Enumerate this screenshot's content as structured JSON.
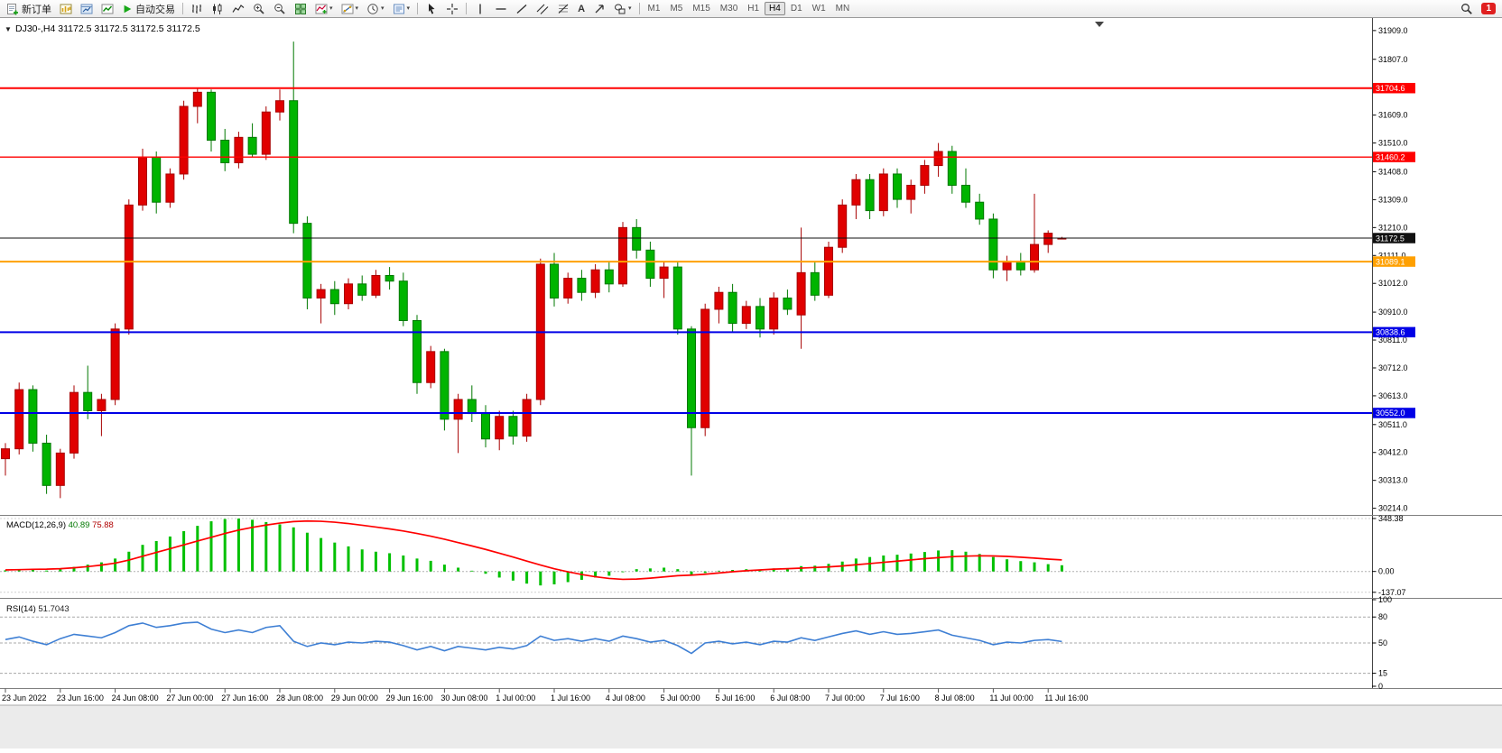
{
  "window": {
    "badge_count": "1"
  },
  "icons": {
    "caret": "▾"
  },
  "toolbar": {
    "new_order_label": "新订单",
    "auto_trading_label": "自动交易",
    "text_tool_label": "A",
    "timeframes": [
      {
        "label": "M1",
        "active": false
      },
      {
        "label": "M5",
        "active": false
      },
      {
        "label": "M15",
        "active": false
      },
      {
        "label": "M30",
        "active": false
      },
      {
        "label": "H1",
        "active": false
      },
      {
        "label": "H4",
        "active": true
      },
      {
        "label": "D1",
        "active": false
      },
      {
        "label": "W1",
        "active": false
      },
      {
        "label": "MN",
        "active": false
      }
    ]
  },
  "chart": {
    "title_marker": "▼",
    "title": "DJ30-,H4 31172.5 31172.5 31172.5 31172.5"
  },
  "chart_data": [
    {
      "type": "candlestick",
      "symbol": "DJ30-",
      "timeframe": "H4",
      "ohlc_current": [
        31172.5,
        31172.5,
        31172.5,
        31172.5
      ],
      "bull_color": "#E00000",
      "bull_stroke": "#A80000",
      "bear_color": "#00B400",
      "bear_stroke": "#007800",
      "ylim": [
        30200,
        31915
      ],
      "y_ticks": [
        31909.0,
        31807.0,
        31609.0,
        31510.0,
        31408.0,
        31309.0,
        31210.0,
        31111.0,
        31012.0,
        30910.0,
        30811.0,
        30712.0,
        30613.0,
        30511.0,
        30412.0,
        30313.0,
        30214.0
      ],
      "hlines": [
        {
          "price": 31704.6,
          "label": "31704.6",
          "color": "#FF0000",
          "width": 2,
          "current": false
        },
        {
          "price": 31460.2,
          "label": "31460.2",
          "color": "#FF0000",
          "width": 1.4,
          "current": false
        },
        {
          "price": 31172.5,
          "label": "31172.5",
          "color": "#101010",
          "width": 1,
          "current": true
        },
        {
          "price": 31089.1,
          "label": "31089.1",
          "color": "#FFA000",
          "width": 2,
          "current": false
        },
        {
          "price": 30838.6,
          "label": "30838.6",
          "color": "#0000E6",
          "width": 2,
          "current": false
        },
        {
          "price": 30552.0,
          "label": "30552.0",
          "color": "#0000E6",
          "width": 2,
          "current": false
        }
      ],
      "x_label_every": 4,
      "x_labels": [
        "23 Jun 2022",
        "23 Jun 16:00",
        "24 Jun 08:00",
        "27 Jun 00:00",
        "27 Jun 16:00",
        "28 Jun 08:00",
        "29 Jun 00:00",
        "29 Jun 16:00",
        "30 Jun 08:00",
        "1 Jul 00:00",
        "1 Jul 16:00",
        "4 Jul 08:00",
        "5 Jul 00:00",
        "5 Jul 16:00",
        "6 Jul 08:00",
        "7 Jul 00:00",
        "7 Jul 16:00",
        "8 Jul 08:00",
        "11 Jul 00:00",
        "11 Jul 16:00"
      ],
      "candles": [
        [
          30390,
          30445,
          30330,
          30425
        ],
        [
          30425,
          30660,
          30405,
          30635
        ],
        [
          30635,
          30650,
          30415,
          30445
        ],
        [
          30445,
          30475,
          30265,
          30295
        ],
        [
          30295,
          30425,
          30250,
          30410
        ],
        [
          30410,
          30650,
          30390,
          30625
        ],
        [
          30625,
          30720,
          30530,
          30560
        ],
        [
          30560,
          30620,
          30470,
          30600
        ],
        [
          30600,
          30870,
          30580,
          30850
        ],
        [
          30850,
          31310,
          30830,
          31290
        ],
        [
          31290,
          31490,
          31270,
          31460
        ],
        [
          31460,
          31480,
          31260,
          31300
        ],
        [
          31300,
          31420,
          31280,
          31400
        ],
        [
          31400,
          31660,
          31380,
          31640
        ],
        [
          31640,
          31705,
          31580,
          31690
        ],
        [
          31690,
          31700,
          31480,
          31520
        ],
        [
          31520,
          31560,
          31410,
          31440
        ],
        [
          31440,
          31550,
          31420,
          31530
        ],
        [
          31530,
          31580,
          31460,
          31470
        ],
        [
          31470,
          31640,
          31450,
          31620
        ],
        [
          31620,
          31700,
          31590,
          31660
        ],
        [
          31660,
          31870,
          31190,
          31225
        ],
        [
          31225,
          31250,
          30920,
          30960
        ],
        [
          30960,
          31010,
          30870,
          30990
        ],
        [
          30990,
          31020,
          30900,
          30940
        ],
        [
          30940,
          31030,
          30920,
          31010
        ],
        [
          31010,
          31040,
          30950,
          30970
        ],
        [
          30970,
          31060,
          30960,
          31040
        ],
        [
          31040,
          31070,
          30990,
          31020
        ],
        [
          31020,
          31050,
          30860,
          30880
        ],
        [
          30880,
          30900,
          30620,
          30660
        ],
        [
          30660,
          30790,
          30640,
          30770
        ],
        [
          30770,
          30780,
          30490,
          30530
        ],
        [
          30530,
          30620,
          30410,
          30600
        ],
        [
          30600,
          30650,
          30520,
          30550
        ],
        [
          30550,
          30580,
          30430,
          30460
        ],
        [
          30460,
          30560,
          30420,
          30540
        ],
        [
          30540,
          30560,
          30440,
          30470
        ],
        [
          30470,
          30620,
          30450,
          30600
        ],
        [
          30600,
          31100,
          30580,
          31080
        ],
        [
          31080,
          31120,
          30930,
          30960
        ],
        [
          30960,
          31050,
          30940,
          31030
        ],
        [
          31030,
          31060,
          30950,
          30980
        ],
        [
          30980,
          31080,
          30960,
          31060
        ],
        [
          31060,
          31090,
          30980,
          31010
        ],
        [
          31010,
          31230,
          31000,
          31210
        ],
        [
          31210,
          31240,
          31100,
          31130
        ],
        [
          31130,
          31160,
          31000,
          31030
        ],
        [
          31030,
          31090,
          30960,
          31070
        ],
        [
          31070,
          31090,
          30830,
          30850
        ],
        [
          30850,
          30860,
          30330,
          30500
        ],
        [
          30500,
          30940,
          30470,
          30920
        ],
        [
          30920,
          31000,
          30870,
          30980
        ],
        [
          30980,
          31010,
          30840,
          30870
        ],
        [
          30870,
          30950,
          30850,
          30930
        ],
        [
          30930,
          30960,
          30820,
          30850
        ],
        [
          30850,
          30980,
          30830,
          30960
        ],
        [
          30960,
          30990,
          30900,
          30920
        ],
        [
          30900,
          31210,
          30780,
          31050
        ],
        [
          31050,
          31090,
          30950,
          30970
        ],
        [
          30970,
          31160,
          30960,
          31140
        ],
        [
          31140,
          31310,
          31120,
          31290
        ],
        [
          31290,
          31400,
          31240,
          31380
        ],
        [
          31380,
          31400,
          31240,
          31270
        ],
        [
          31270,
          31420,
          31250,
          31400
        ],
        [
          31400,
          31420,
          31280,
          31310
        ],
        [
          31310,
          31380,
          31260,
          31360
        ],
        [
          31360,
          31450,
          31330,
          31430
        ],
        [
          31430,
          31510,
          31390,
          31480
        ],
        [
          31480,
          31500,
          31330,
          31360
        ],
        [
          31360,
          31420,
          31280,
          31300
        ],
        [
          31300,
          31330,
          31220,
          31240
        ],
        [
          31240,
          31260,
          31030,
          31060
        ],
        [
          31060,
          31110,
          31020,
          31090
        ],
        [
          31090,
          31120,
          31040,
          31060
        ],
        [
          31060,
          31330,
          31050,
          31150
        ],
        [
          31150,
          31200,
          31120,
          31190
        ],
        [
          31172.5,
          31177,
          31168,
          31172.5
        ]
      ]
    },
    {
      "type": "macd",
      "title": "MACD(12,26,9)",
      "current_macd": "40.89",
      "current_signal": "75.88",
      "hist_color": "#00C000",
      "signal_color": "#FF0000",
      "ylim": [
        -162,
        360
      ],
      "y_ticks": [
        {
          "v": 348.38,
          "t": "348.38"
        },
        {
          "v": 0,
          "t": "0.00"
        },
        {
          "v": -137.07,
          "t": "-137.07"
        }
      ],
      "hist": [
        8,
        12,
        10,
        6,
        14,
        30,
        45,
        60,
        85,
        130,
        175,
        200,
        230,
        265,
        300,
        330,
        345,
        348,
        340,
        325,
        310,
        290,
        255,
        220,
        190,
        165,
        145,
        130,
        120,
        105,
        85,
        70,
        45,
        25,
        5,
        -15,
        -40,
        -60,
        -80,
        -92,
        -85,
        -70,
        -55,
        -40,
        -28,
        -5,
        15,
        20,
        25,
        15,
        -20,
        -10,
        5,
        10,
        15,
        12,
        20,
        22,
        35,
        38,
        50,
        65,
        85,
        95,
        105,
        110,
        118,
        128,
        138,
        140,
        130,
        115,
        95,
        80,
        68,
        60,
        48,
        40.89
      ],
      "signal": [
        10,
        12,
        14,
        15,
        18,
        24,
        32,
        42,
        55,
        75,
        100,
        125,
        150,
        175,
        200,
        225,
        250,
        272,
        290,
        305,
        318,
        328,
        332,
        330,
        324,
        315,
        304,
        292,
        280,
        266,
        250,
        232,
        212,
        190,
        168,
        145,
        120,
        95,
        68,
        42,
        18,
        -2,
        -20,
        -35,
        -46,
        -52,
        -50,
        -44,
        -36,
        -28,
        -24,
        -18,
        -10,
        -2,
        5,
        10,
        15,
        18,
        22,
        26,
        30,
        36,
        44,
        52,
        60,
        68,
        76,
        84,
        91,
        97,
        101,
        103,
        102,
        99,
        94,
        88,
        81,
        75.88
      ]
    },
    {
      "type": "line",
      "title": "RSI(14)",
      "current": "51.7043",
      "color": "#3E7FD4",
      "ylim": [
        0,
        100
      ],
      "levels": [
        80,
        50,
        15
      ],
      "y_ticks": [
        {
          "v": 100,
          "t": "100"
        },
        {
          "v": 80,
          "t": "80"
        },
        {
          "v": 50,
          "t": "50"
        },
        {
          "v": 15,
          "t": "15"
        },
        {
          "v": 0,
          "t": "0"
        }
      ],
      "values": [
        54,
        57,
        52,
        48,
        55,
        60,
        58,
        56,
        62,
        70,
        73,
        68,
        70,
        73,
        74,
        66,
        62,
        65,
        62,
        68,
        70,
        52,
        46,
        50,
        48,
        51,
        50,
        52,
        51,
        47,
        42,
        46,
        41,
        46,
        44,
        42,
        45,
        43,
        47,
        58,
        53,
        55,
        52,
        55,
        52,
        58,
        55,
        51,
        53,
        47,
        38,
        50,
        52,
        49,
        51,
        48,
        52,
        51,
        56,
        53,
        57,
        61,
        64,
        60,
        63,
        60,
        61,
        63,
        65,
        59,
        56,
        53,
        48,
        51,
        50,
        53,
        54,
        51.7
      ]
    }
  ]
}
